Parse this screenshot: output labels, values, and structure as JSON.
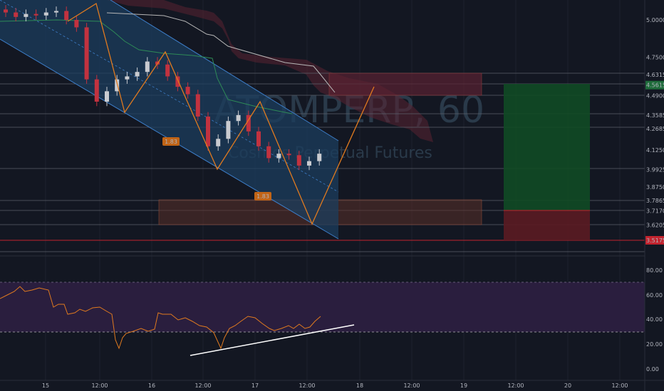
{
  "watermark": {
    "symbol_tf": "ATOMPERP, 60",
    "name": "Cosmos Perpetual Futures"
  },
  "colors": {
    "background": "#131722",
    "up_candle": "#c9cbd0",
    "down_candle": "#c2323f",
    "channel_fill": "#1c3d5e",
    "zigzag": "#e07a1f",
    "rsi_band": "#2a1e3e",
    "rsi_line": "#e07a1f",
    "stop_zone": "#5b1b22",
    "target_zone": "#114a25",
    "supply_zone": "#5a2232",
    "demand_zone": "#5a3028"
  },
  "price_labels": [
    {
      "text": "5.0000",
      "price": 5.0
    },
    {
      "text": "4.7500",
      "price": 4.75
    },
    {
      "text": "4.6315",
      "price": 4.6315
    },
    {
      "text": "4.5615",
      "price": 4.5615,
      "badge": "#1e6b3a"
    },
    {
      "text": "4.4900",
      "price": 4.49
    },
    {
      "text": "4.3585",
      "price": 4.3585
    },
    {
      "text": "4.2685",
      "price": 4.2685
    },
    {
      "text": "4.1250",
      "price": 4.125
    },
    {
      "text": "3.9925",
      "price": 3.9925
    },
    {
      "text": "3.8750",
      "price": 3.875
    },
    {
      "text": "3.7865",
      "price": 3.7865
    },
    {
      "text": "3.7170",
      "price": 3.717
    },
    {
      "text": "3.6205",
      "price": 3.6205
    },
    {
      "text": "3.5175",
      "price": 3.5175,
      "badge": "#c2232e"
    }
  ],
  "rsi_labels": [
    "80.00",
    "60.00",
    "40.00",
    "20.00",
    "0.00"
  ],
  "time_labels": [
    "15",
    "12:00",
    "16",
    "12:00",
    "17",
    "12:00",
    "18",
    "12:00",
    "19",
    "12:00",
    "20",
    "12:00"
  ],
  "annotations": [
    {
      "text": "1.83"
    },
    {
      "text": "1.83"
    }
  ],
  "chart_data": {
    "type": "candlestick",
    "symbol": "ATOMPERP",
    "interval": "60",
    "horizontal_levels": [
      4.6315,
      4.5615,
      4.49,
      4.3585,
      4.2685,
      3.9925,
      3.7865,
      3.717,
      3.6205,
      3.5175
    ],
    "candles_close_approx": [
      5.05,
      5.02,
      5.04,
      5.03,
      5.05,
      5.06,
      5.0,
      4.95,
      4.6,
      4.45,
      4.52,
      4.6,
      4.62,
      4.65,
      4.72,
      4.7,
      4.62,
      4.55,
      4.5,
      4.35,
      4.15,
      4.2,
      4.32,
      4.36,
      4.25,
      4.15,
      4.07,
      4.1,
      4.09,
      4.02,
      4.05,
      4.1
    ],
    "rsi": {
      "levels": [
        70,
        30
      ],
      "range": [
        0,
        100
      ],
      "last": 42
    }
  }
}
